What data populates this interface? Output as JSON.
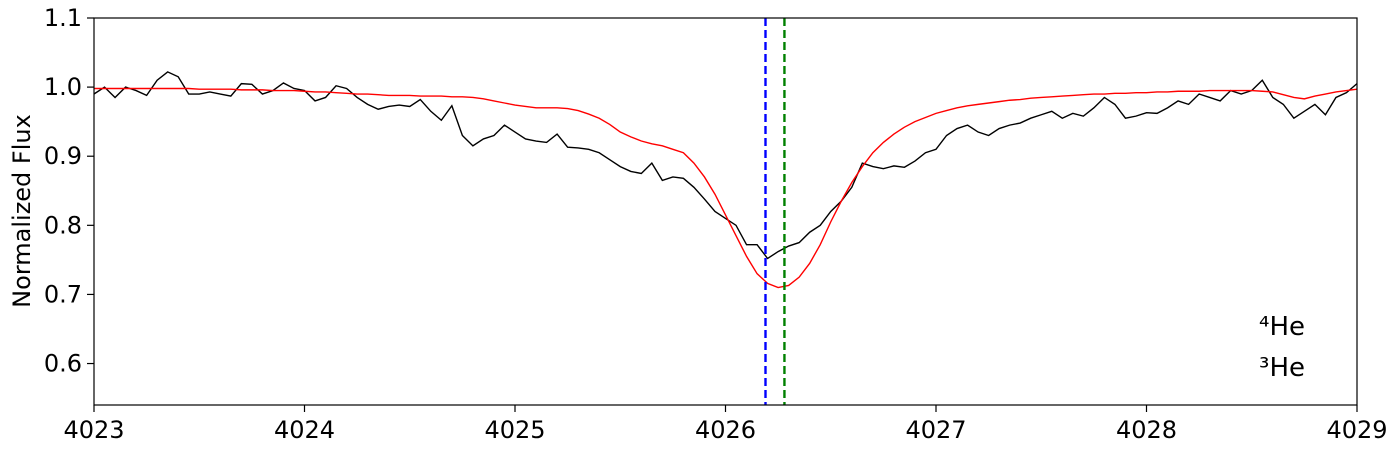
{
  "chart_data": {
    "type": "line",
    "ylabel": "Normalized Flux",
    "xlim": [
      4023,
      4029
    ],
    "ylim": [
      0.54,
      1.1
    ],
    "xticks": [
      4023,
      4024,
      4025,
      4026,
      4027,
      4028,
      4029
    ],
    "yticks": [
      0.6,
      0.7,
      0.8,
      0.9,
      {
        "value": 1,
        "label": "1.0"
      },
      1.1
    ],
    "x": [
      4023,
      4023.05,
      4023.1,
      4023.15,
      4023.2,
      4023.25,
      4023.3,
      4023.35,
      4023.4,
      4023.45,
      4023.5,
      4023.55,
      4023.6,
      4023.65,
      4023.7,
      4023.75,
      4023.8,
      4023.85,
      4023.9,
      4023.95,
      4024,
      4024.05,
      4024.1,
      4024.15,
      4024.2,
      4024.25,
      4024.3,
      4024.35,
      4024.4,
      4024.45,
      4024.5,
      4024.55,
      4024.6,
      4024.65,
      4024.7,
      4024.75,
      4024.8,
      4024.85,
      4024.9,
      4024.95,
      4025,
      4025.05,
      4025.1,
      4025.15,
      4025.2,
      4025.25,
      4025.3,
      4025.35,
      4025.4,
      4025.45,
      4025.5,
      4025.55,
      4025.6,
      4025.65,
      4025.7,
      4025.75,
      4025.8,
      4025.85,
      4025.9,
      4025.95,
      4026,
      4026.05,
      4026.1,
      4026.15,
      4026.2,
      4026.25,
      4026.3,
      4026.35,
      4026.4,
      4026.45,
      4026.5,
      4026.55,
      4026.6,
      4026.65,
      4026.7,
      4026.75,
      4026.8,
      4026.85,
      4026.9,
      4026.95,
      4027,
      4027.05,
      4027.1,
      4027.15,
      4027.2,
      4027.25,
      4027.3,
      4027.35,
      4027.4,
      4027.45,
      4027.5,
      4027.55,
      4027.6,
      4027.65,
      4027.7,
      4027.75,
      4027.8,
      4027.85,
      4027.9,
      4027.95,
      4028,
      4028.05,
      4028.1,
      4028.15,
      4028.2,
      4028.25,
      4028.3,
      4028.35,
      4028.4,
      4028.45,
      4028.5,
      4028.55,
      4028.6,
      4028.65,
      4028.7,
      4028.75,
      4028.8,
      4028.85,
      4028.9,
      4028.95,
      4029
    ],
    "series": [
      {
        "color": "#000000",
        "values": [
          0.99,
          1.0,
          0.985,
          1.0,
          0.995,
          0.988,
          1.01,
          1.022,
          1.015,
          0.99,
          0.99,
          0.993,
          0.99,
          0.987,
          1.005,
          1.004,
          0.99,
          0.995,
          1.006,
          0.998,
          0.995,
          0.98,
          0.985,
          1.002,
          0.998,
          0.985,
          0.975,
          0.968,
          0.972,
          0.974,
          0.972,
          0.982,
          0.965,
          0.952,
          0.973,
          0.93,
          0.915,
          0.925,
          0.93,
          0.945,
          0.935,
          0.925,
          0.922,
          0.92,
          0.932,
          0.913,
          0.912,
          0.91,
          0.905,
          0.895,
          0.885,
          0.878,
          0.875,
          0.89,
          0.865,
          0.87,
          0.868,
          0.855,
          0.838,
          0.82,
          0.81,
          0.8,
          0.772,
          0.772,
          0.752,
          0.762,
          0.77,
          0.775,
          0.79,
          0.8,
          0.82,
          0.835,
          0.855,
          0.89,
          0.885,
          0.882,
          0.886,
          0.884,
          0.893,
          0.905,
          0.91,
          0.93,
          0.94,
          0.945,
          0.935,
          0.93,
          0.94,
          0.945,
          0.948,
          0.955,
          0.96,
          0.965,
          0.955,
          0.962,
          0.958,
          0.97,
          0.985,
          0.975,
          0.955,
          0.958,
          0.963,
          0.962,
          0.97,
          0.98,
          0.975,
          0.99,
          0.985,
          0.98,
          0.995,
          0.99,
          0.995,
          1.01,
          0.985,
          0.975,
          0.955,
          0.965,
          0.975,
          0.96,
          0.985,
          0.992,
          1.005
        ]
      },
      {
        "color": "#ff0000",
        "values": [
          0.998,
          0.998,
          0.998,
          0.998,
          0.998,
          0.998,
          0.998,
          0.998,
          0.998,
          0.998,
          0.997,
          0.997,
          0.997,
          0.997,
          0.996,
          0.996,
          0.996,
          0.995,
          0.995,
          0.995,
          0.994,
          0.993,
          0.993,
          0.992,
          0.991,
          0.99,
          0.99,
          0.989,
          0.988,
          0.988,
          0.988,
          0.987,
          0.987,
          0.987,
          0.986,
          0.986,
          0.985,
          0.983,
          0.98,
          0.977,
          0.974,
          0.972,
          0.97,
          0.97,
          0.97,
          0.969,
          0.966,
          0.961,
          0.955,
          0.946,
          0.935,
          0.928,
          0.922,
          0.918,
          0.915,
          0.91,
          0.905,
          0.89,
          0.87,
          0.845,
          0.815,
          0.785,
          0.755,
          0.73,
          0.716,
          0.71,
          0.713,
          0.725,
          0.745,
          0.772,
          0.805,
          0.835,
          0.862,
          0.885,
          0.905,
          0.92,
          0.932,
          0.942,
          0.95,
          0.956,
          0.962,
          0.966,
          0.97,
          0.973,
          0.975,
          0.977,
          0.979,
          0.981,
          0.982,
          0.984,
          0.985,
          0.986,
          0.987,
          0.988,
          0.989,
          0.99,
          0.99,
          0.991,
          0.991,
          0.992,
          0.992,
          0.993,
          0.993,
          0.994,
          0.994,
          0.994,
          0.995,
          0.995,
          0.995,
          0.995,
          0.995,
          0.994,
          0.993,
          0.989,
          0.985,
          0.983,
          0.987,
          0.99,
          0.993,
          0.995,
          0.997
        ]
      }
    ],
    "vlines": [
      {
        "x": 4026.19,
        "color": "#0000ff"
      },
      {
        "x": 4026.28,
        "color": "#008000"
      }
    ],
    "annotations": [
      {
        "text": "⁴He",
        "color": "#0000ff"
      },
      {
        "text": "³He",
        "color": "#008000"
      }
    ]
  }
}
